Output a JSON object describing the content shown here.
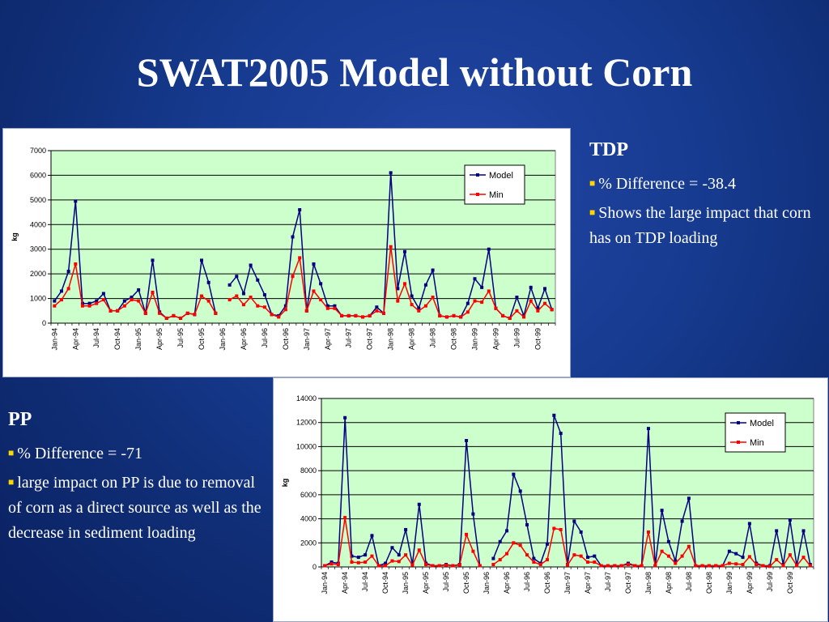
{
  "title": "SWAT2005 Model without Corn",
  "tdp": {
    "heading": "TDP",
    "bullets": [
      "%  Difference = -38.4",
      "Shows the large impact that corn has on TDP loading"
    ]
  },
  "pp": {
    "heading": "PP",
    "bullets": [
      "%  Difference = -71",
      "large impact on PP is due to removal of corn as a direct source as well as the decrease in sediment loading"
    ]
  },
  "colors": {
    "model": "#000080",
    "min": "#ff0000",
    "plot_bg": "#ccffcc",
    "bullet": "#ffd700"
  },
  "chart_data": [
    {
      "type": "line",
      "title": "",
      "ylabel": "kg",
      "xlabel": "",
      "ylim": [
        0,
        7000
      ],
      "yticks": [
        0,
        1000,
        2000,
        3000,
        4000,
        5000,
        6000,
        7000
      ],
      "x_tick_labels": [
        "Jan-94",
        "Apr-94",
        "Jul-94",
        "Oct-94",
        "Jan-95",
        "Apr-95",
        "Jul-95",
        "Oct-95",
        "Jan-96",
        "Apr-96",
        "Jul-96",
        "Oct-96",
        "Jan-97",
        "Apr-97",
        "Jul-97",
        "Oct-97",
        "Jan-98",
        "Apr-98",
        "Jul-98",
        "Oct-98",
        "Jan-99",
        "Apr-99",
        "Jul-99",
        "Oct-99"
      ],
      "grid": "horizontal",
      "legend": "top-right",
      "series": [
        {
          "name": "Model",
          "values": [
            900,
            1300,
            2100,
            4950,
            800,
            800,
            900,
            1200,
            500,
            500,
            900,
            1050,
            1350,
            400,
            2550,
            450,
            200,
            300,
            200,
            400,
            350,
            2550,
            1650,
            400,
            null,
            1550,
            1900,
            1200,
            2350,
            1750,
            1150,
            350,
            300,
            700,
            3500,
            4600,
            500,
            2400,
            1600,
            700,
            700,
            300,
            300,
            300,
            250,
            300,
            650,
            400,
            6100,
            1400,
            2900,
            1100,
            600,
            1550,
            2150,
            300,
            250,
            300,
            250,
            800,
            1800,
            1450,
            3000,
            600,
            300,
            200,
            1050,
            300,
            1450,
            600,
            1400,
            550
          ]
        },
        {
          "name": "Min",
          "values": [
            700,
            950,
            1400,
            2400,
            700,
            700,
            800,
            950,
            500,
            500,
            700,
            950,
            900,
            400,
            1250,
            400,
            200,
            300,
            200,
            400,
            350,
            1100,
            900,
            400,
            null,
            950,
            1100,
            750,
            1050,
            700,
            650,
            350,
            250,
            550,
            1900,
            2650,
            500,
            1300,
            950,
            600,
            600,
            300,
            300,
            300,
            250,
            300,
            500,
            400,
            3100,
            900,
            1600,
            750,
            500,
            700,
            1050,
            300,
            250,
            300,
            250,
            450,
            900,
            850,
            1300,
            600,
            300,
            200,
            500,
            250,
            900,
            500,
            800,
            550
          ]
        }
      ]
    },
    {
      "type": "line",
      "title": "",
      "ylabel": "kg",
      "xlabel": "",
      "ylim": [
        0,
        14000
      ],
      "yticks": [
        0,
        2000,
        4000,
        6000,
        8000,
        10000,
        12000,
        14000
      ],
      "x_tick_labels": [
        "Jan-94",
        "Apr-94",
        "Jul-94",
        "Oct-94",
        "Jan-95",
        "Apr-95",
        "Jul-95",
        "Oct-95",
        "Jan-96",
        "Apr-96",
        "Jul-96",
        "Oct-96",
        "Jan-97",
        "Apr-97",
        "Jul-97",
        "Oct-97",
        "Jan-98",
        "Apr-98",
        "Jul-98",
        "Oct-98",
        "Jan-99",
        "Apr-99",
        "Jul-99",
        "Oct-99"
      ],
      "grid": "horizontal",
      "legend": "top-right",
      "series": [
        {
          "name": "Model",
          "values": [
            100,
            400,
            300,
            12400,
            900,
            800,
            1000,
            2600,
            100,
            300,
            1600,
            1000,
            3100,
            200,
            5200,
            300,
            100,
            100,
            200,
            100,
            200,
            10500,
            4400,
            100,
            null,
            700,
            2100,
            3000,
            7700,
            6300,
            3500,
            700,
            300,
            1900,
            12600,
            11100,
            200,
            3800,
            2900,
            800,
            900,
            100,
            100,
            100,
            100,
            300,
            100,
            100,
            11500,
            100,
            4700,
            2100,
            500,
            3800,
            5700,
            100,
            100,
            100,
            100,
            100,
            1300,
            1100,
            800,
            3600,
            300,
            100,
            100,
            3000,
            200,
            3900,
            100,
            3000,
            200
          ]
        },
        {
          "name": "Min",
          "values": [
            100,
            250,
            200,
            4100,
            400,
            350,
            400,
            900,
            100,
            100,
            500,
            450,
            1000,
            150,
            1400,
            200,
            100,
            100,
            150,
            100,
            150,
            2700,
            1300,
            100,
            null,
            200,
            600,
            1100,
            2000,
            1800,
            1000,
            400,
            200,
            600,
            3200,
            3100,
            150,
            1000,
            900,
            400,
            400,
            100,
            100,
            100,
            100,
            200,
            100,
            100,
            2900,
            100,
            1300,
            900,
            300,
            900,
            1700,
            100,
            100,
            100,
            100,
            100,
            300,
            250,
            200,
            850,
            200,
            100,
            50,
            600,
            100,
            1000,
            100,
            800,
            100
          ]
        }
      ]
    }
  ]
}
